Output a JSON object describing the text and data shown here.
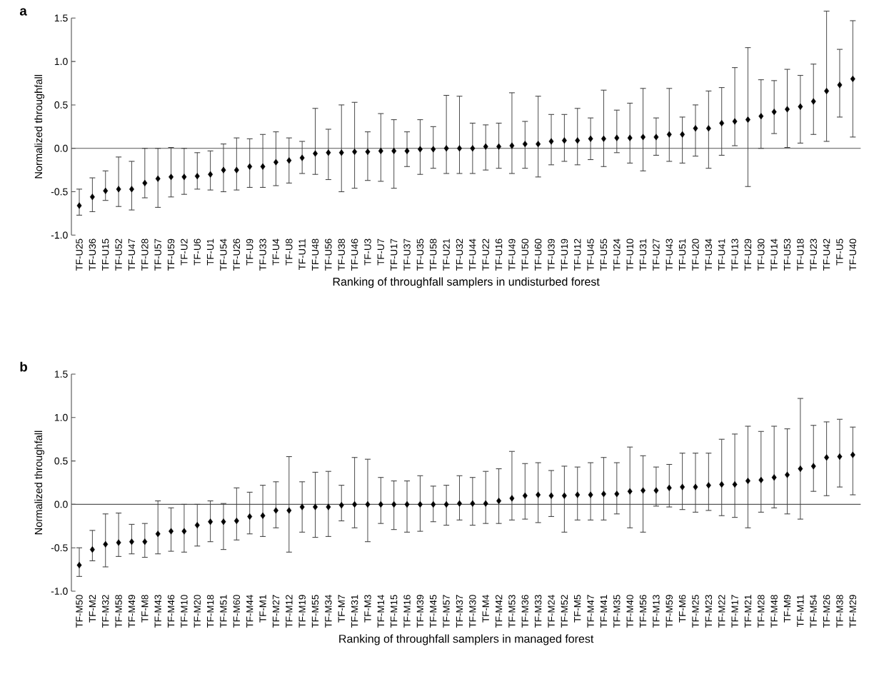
{
  "chart_data": [
    {
      "type": "scatter",
      "title": "a",
      "xlabel": "Ranking of throughfall samplers in undisturbed forest",
      "ylabel": "Normalized throughfall",
      "marker": "diamond",
      "categories": [
        "TF-U25",
        "TF-U36",
        "TF-U15",
        "TF-U52",
        "TF-U47",
        "TF-U28",
        "TF-U57",
        "TF-U59",
        "TF-U2",
        "TF-U6",
        "TF-U1",
        "TF-U54",
        "TF-U26",
        "TF-U9",
        "TF-U33",
        "TF-U4",
        "TF-U8",
        "TF-U11",
        "TF-U48",
        "TF-U56",
        "TF-U38",
        "TF-U46",
        "TF-U3",
        "TF-U7",
        "TF-U17",
        "TF-U37",
        "TF-U35",
        "TF-U58",
        "TF-U21",
        "TF-U32",
        "TF-U44",
        "TF-U22",
        "TF-U16",
        "TF-U49",
        "TF-U50",
        "TF-U60",
        "TF-U39",
        "TF-U19",
        "TF-U12",
        "TF-U45",
        "TF-U55",
        "TF-U24",
        "TF-U10",
        "TF-U31",
        "TF-U27",
        "TF-U43",
        "TF-U51",
        "TF-U20",
        "TF-U34",
        "TF-U41",
        "TF-U13",
        "TF-U29",
        "TF-U30",
        "TF-U14",
        "TF-U53",
        "TF-U18",
        "TF-U23",
        "TF-U42",
        "TF-U5",
        "TF-U40"
      ],
      "series": [
        {
          "color": "#000000",
          "values": [
            -0.66,
            -0.56,
            -0.49,
            -0.47,
            -0.47,
            -0.4,
            -0.35,
            -0.33,
            -0.33,
            -0.32,
            -0.3,
            -0.25,
            -0.25,
            -0.21,
            -0.21,
            -0.16,
            -0.14,
            -0.11,
            -0.06,
            -0.05,
            -0.05,
            -0.04,
            -0.04,
            -0.03,
            -0.03,
            -0.03,
            -0.01,
            -0.01,
            0.0,
            0.0,
            0.0,
            0.02,
            0.02,
            0.03,
            0.05,
            0.05,
            0.08,
            0.09,
            0.09,
            0.11,
            0.11,
            0.12,
            0.12,
            0.13,
            0.13,
            0.16,
            0.16,
            0.23,
            0.23,
            0.29,
            0.31,
            0.33,
            0.37,
            0.42,
            0.45,
            0.48,
            0.54,
            0.66,
            0.73,
            0.8
          ],
          "errors": [
            [
              -0.77,
              -0.47
            ],
            [
              -0.73,
              -0.34
            ],
            [
              -0.6,
              -0.26
            ],
            [
              -0.67,
              -0.1
            ],
            [
              -0.71,
              -0.15
            ],
            [
              -0.57,
              0.0
            ],
            [
              -0.68,
              0.0
            ],
            [
              -0.56,
              0.01
            ],
            [
              -0.53,
              0.0
            ],
            [
              -0.47,
              -0.05
            ],
            [
              -0.48,
              -0.03
            ],
            [
              -0.5,
              0.05
            ],
            [
              -0.48,
              0.12
            ],
            [
              -0.45,
              0.11
            ],
            [
              -0.45,
              0.16
            ],
            [
              -0.43,
              0.19
            ],
            [
              -0.4,
              0.12
            ],
            [
              -0.29,
              0.08
            ],
            [
              -0.3,
              0.46
            ],
            [
              -0.36,
              0.22
            ],
            [
              -0.5,
              0.5
            ],
            [
              -0.46,
              0.53
            ],
            [
              -0.37,
              0.19
            ],
            [
              -0.38,
              0.4
            ],
            [
              -0.46,
              0.33
            ],
            [
              -0.21,
              0.19
            ],
            [
              -0.3,
              0.33
            ],
            [
              -0.23,
              0.25
            ],
            [
              -0.29,
              0.61
            ],
            [
              -0.29,
              0.6
            ],
            [
              -0.29,
              0.29
            ],
            [
              -0.25,
              0.27
            ],
            [
              -0.23,
              0.29
            ],
            [
              -0.29,
              0.64
            ],
            [
              -0.23,
              0.31
            ],
            [
              -0.33,
              0.6
            ],
            [
              -0.19,
              0.39
            ],
            [
              -0.15,
              0.39
            ],
            [
              -0.19,
              0.46
            ],
            [
              -0.13,
              0.35
            ],
            [
              -0.21,
              0.67
            ],
            [
              -0.05,
              0.44
            ],
            [
              -0.17,
              0.52
            ],
            [
              -0.26,
              0.69
            ],
            [
              -0.08,
              0.35
            ],
            [
              -0.15,
              0.69
            ],
            [
              -0.17,
              0.36
            ],
            [
              -0.09,
              0.5
            ],
            [
              -0.23,
              0.66
            ],
            [
              -0.08,
              0.7
            ],
            [
              0.03,
              0.93
            ],
            [
              -0.44,
              1.16
            ],
            [
              0.0,
              0.79
            ],
            [
              0.17,
              0.78
            ],
            [
              0.01,
              0.91
            ],
            [
              0.06,
              0.84
            ],
            [
              0.16,
              0.97
            ],
            [
              0.08,
              1.58
            ],
            [
              0.36,
              1.14
            ],
            [
              0.13,
              1.47
            ]
          ]
        }
      ],
      "ylim": [
        -1,
        1.5
      ],
      "yticks": [
        {
          "value": -1,
          "label": "-1.0"
        },
        {
          "value": -0.5,
          "label": "-0.5"
        },
        {
          "value": 0,
          "label": "0.0"
        },
        {
          "value": 0.5,
          "label": "0.5"
        },
        {
          "value": 1,
          "label": "1.0"
        },
        {
          "value": 1.5,
          "label": "1.5"
        }
      ],
      "ref_lines": [
        {
          "axis": "y",
          "value": 0
        }
      ]
    },
    {
      "type": "scatter",
      "title": "b",
      "xlabel": "Ranking of throughfall samplers in managed forest",
      "ylabel": "Normalized throughfall",
      "marker": "diamond",
      "categories": [
        "TF-M50",
        "TF-M2",
        "TF-M32",
        "TF-M58",
        "TF-M49",
        "TF-M8",
        "TF-M43",
        "TF-M46",
        "TF-M10",
        "TF-M20",
        "TF-M18",
        "TF-M51",
        "TF-M60",
        "TF-M44",
        "TF-M1",
        "TF-M27",
        "TF-M12",
        "TF-M19",
        "TF-M55",
        "TF-M34",
        "TF-M7",
        "TF-M31",
        "TF-M3",
        "TF-M14",
        "TF-M15",
        "TF-M16",
        "TF-M39",
        "TF-M45",
        "TF-M57",
        "TF-M37",
        "TF-M30",
        "TF-M4",
        "TF-M42",
        "TF-M53",
        "TF-M36",
        "TF-M33",
        "TF-M24",
        "TF-M52",
        "TF-M5",
        "TF-M47",
        "TF-M41",
        "TF-M35",
        "TF-M40",
        "TF-M56",
        "TF-M13",
        "TF-M59",
        "TF-M6",
        "TF-M25",
        "TF-M23",
        "TF-M22",
        "TF-M17",
        "TF-M21",
        "TF-M28",
        "TF-M48",
        "TF-M9",
        "TF-M11",
        "TF-M54",
        "TF-M26",
        "TF-M38",
        "TF-M29"
      ],
      "series": [
        {
          "color": "#000000",
          "values": [
            -0.7,
            -0.52,
            -0.46,
            -0.44,
            -0.43,
            -0.43,
            -0.34,
            -0.31,
            -0.31,
            -0.24,
            -0.2,
            -0.2,
            -0.19,
            -0.14,
            -0.13,
            -0.07,
            -0.07,
            -0.03,
            -0.03,
            -0.03,
            -0.01,
            0.0,
            0.0,
            0.0,
            0.0,
            0.0,
            0.0,
            0.0,
            0.0,
            0.01,
            0.01,
            0.01,
            0.04,
            0.07,
            0.1,
            0.11,
            0.1,
            0.1,
            0.11,
            0.11,
            0.12,
            0.12,
            0.15,
            0.16,
            0.16,
            0.19,
            0.2,
            0.2,
            0.22,
            0.23,
            0.23,
            0.27,
            0.28,
            0.31,
            0.34,
            0.41,
            0.44,
            0.54,
            0.55,
            0.57
          ],
          "errors": [
            [
              -0.83,
              -0.5
            ],
            [
              -0.65,
              -0.3
            ],
            [
              -0.72,
              -0.11
            ],
            [
              -0.6,
              -0.1
            ],
            [
              -0.57,
              -0.23
            ],
            [
              -0.61,
              -0.22
            ],
            [
              -0.57,
              0.04
            ],
            [
              -0.54,
              -0.04
            ],
            [
              -0.55,
              0.0
            ],
            [
              -0.48,
              0.0
            ],
            [
              -0.43,
              0.04
            ],
            [
              -0.52,
              0.01
            ],
            [
              -0.41,
              0.19
            ],
            [
              -0.34,
              0.14
            ],
            [
              -0.37,
              0.22
            ],
            [
              -0.27,
              0.26
            ],
            [
              -0.55,
              0.55
            ],
            [
              -0.32,
              0.26
            ],
            [
              -0.38,
              0.37
            ],
            [
              -0.37,
              0.38
            ],
            [
              -0.19,
              0.22
            ],
            [
              -0.27,
              0.54
            ],
            [
              -0.43,
              0.52
            ],
            [
              -0.22,
              0.31
            ],
            [
              -0.29,
              0.27
            ],
            [
              -0.32,
              0.27
            ],
            [
              -0.31,
              0.33
            ],
            [
              -0.2,
              0.21
            ],
            [
              -0.24,
              0.22
            ],
            [
              -0.18,
              0.33
            ],
            [
              -0.24,
              0.31
            ],
            [
              -0.22,
              0.38
            ],
            [
              -0.22,
              0.41
            ],
            [
              -0.18,
              0.61
            ],
            [
              -0.17,
              0.47
            ],
            [
              -0.21,
              0.48
            ],
            [
              -0.14,
              0.39
            ],
            [
              -0.32,
              0.44
            ],
            [
              -0.18,
              0.43
            ],
            [
              -0.18,
              0.48
            ],
            [
              -0.18,
              0.54
            ],
            [
              -0.11,
              0.48
            ],
            [
              -0.27,
              0.66
            ],
            [
              -0.32,
              0.56
            ],
            [
              -0.02,
              0.43
            ],
            [
              -0.03,
              0.46
            ],
            [
              -0.06,
              0.59
            ],
            [
              -0.09,
              0.59
            ],
            [
              -0.07,
              0.59
            ],
            [
              -0.13,
              0.75
            ],
            [
              -0.15,
              0.81
            ],
            [
              -0.27,
              0.9
            ],
            [
              -0.09,
              0.84
            ],
            [
              -0.04,
              0.9
            ],
            [
              -0.11,
              0.87
            ],
            [
              -0.17,
              1.22
            ],
            [
              0.15,
              0.91
            ],
            [
              0.1,
              0.95
            ],
            [
              0.2,
              0.98
            ],
            [
              0.11,
              0.89
            ]
          ]
        }
      ],
      "ylim": [
        -1,
        1.5
      ],
      "yticks": [
        {
          "value": -1,
          "label": "-1.0"
        },
        {
          "value": -0.5,
          "label": "-0.5"
        },
        {
          "value": 0,
          "label": "0.0"
        },
        {
          "value": 0.5,
          "label": "0.5"
        },
        {
          "value": 1,
          "label": "1.0"
        },
        {
          "value": 1.5,
          "label": "1.5"
        }
      ],
      "ref_lines": [
        {
          "axis": "y",
          "value": 0
        }
      ]
    }
  ]
}
